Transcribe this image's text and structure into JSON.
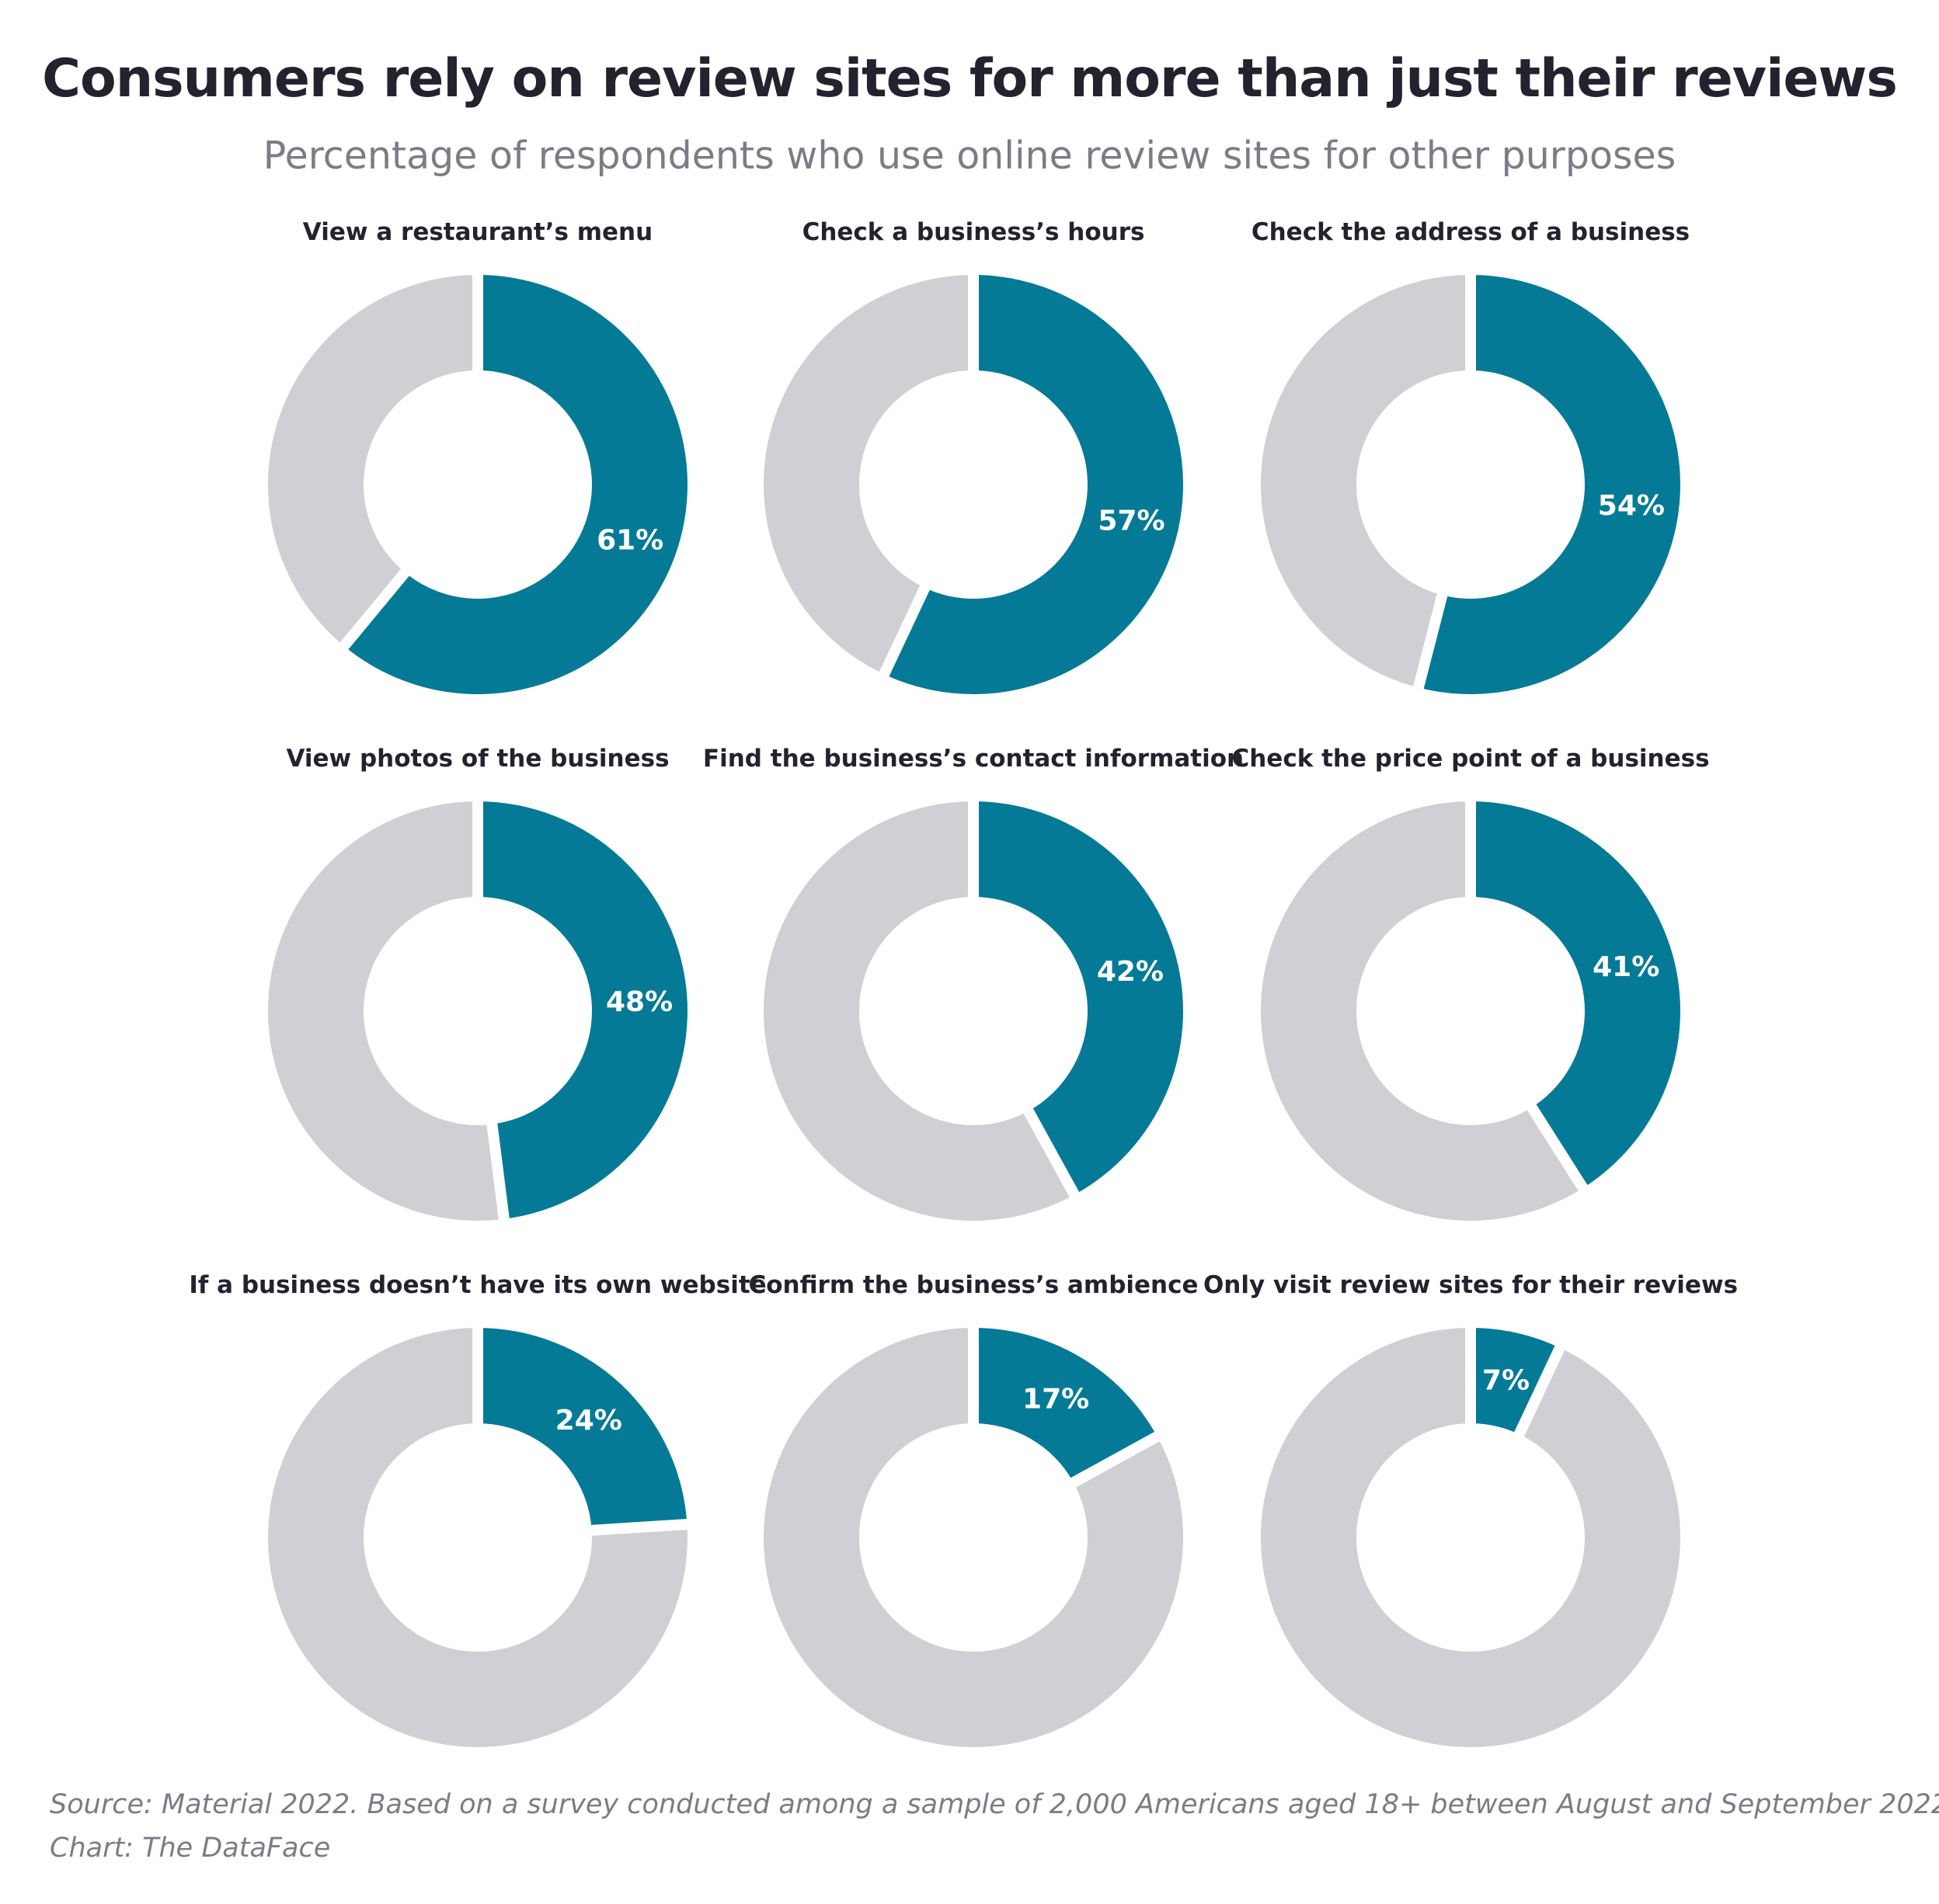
{
  "title": "Consumers rely on review sites for more than just their reviews",
  "subtitle": "Percentage of respondents who use online review sites for other purposes",
  "colors": {
    "accent": "#047a97",
    "remainder": "#d0cfd4",
    "text": "#23222f",
    "muted": "#7d7b85"
  },
  "chart_data": {
    "type": "pie",
    "variant": "donut small multiples",
    "charts": [
      {
        "label": "View a restaurant’s menu",
        "value": 61,
        "value_label": "61%"
      },
      {
        "label": "Check a business’s hours",
        "value": 57,
        "value_label": "57%"
      },
      {
        "label": "Check the address of a business",
        "value": 54,
        "value_label": "54%"
      },
      {
        "label": "View photos of the business",
        "value": 48,
        "value_label": "48%"
      },
      {
        "label": "Find the business’s contact information",
        "value": 42,
        "value_label": "42%"
      },
      {
        "label": "Check the price point of a business",
        "value": 41,
        "value_label": "41%"
      },
      {
        "label": "If a business doesn’t have its own website",
        "value": 24,
        "value_label": "24%"
      },
      {
        "label": "Confirm the business’s ambience",
        "value": 17,
        "value_label": "17%"
      },
      {
        "label": "Only visit review sites for their reviews",
        "value": 7,
        "value_label": "7%"
      }
    ]
  },
  "source": {
    "line1": "Source: Material 2022. Based on a survey conducted among a sample of 2,000 Americans aged 18+ between August and September 2022.",
    "line2": "Chart: The DataFace"
  }
}
